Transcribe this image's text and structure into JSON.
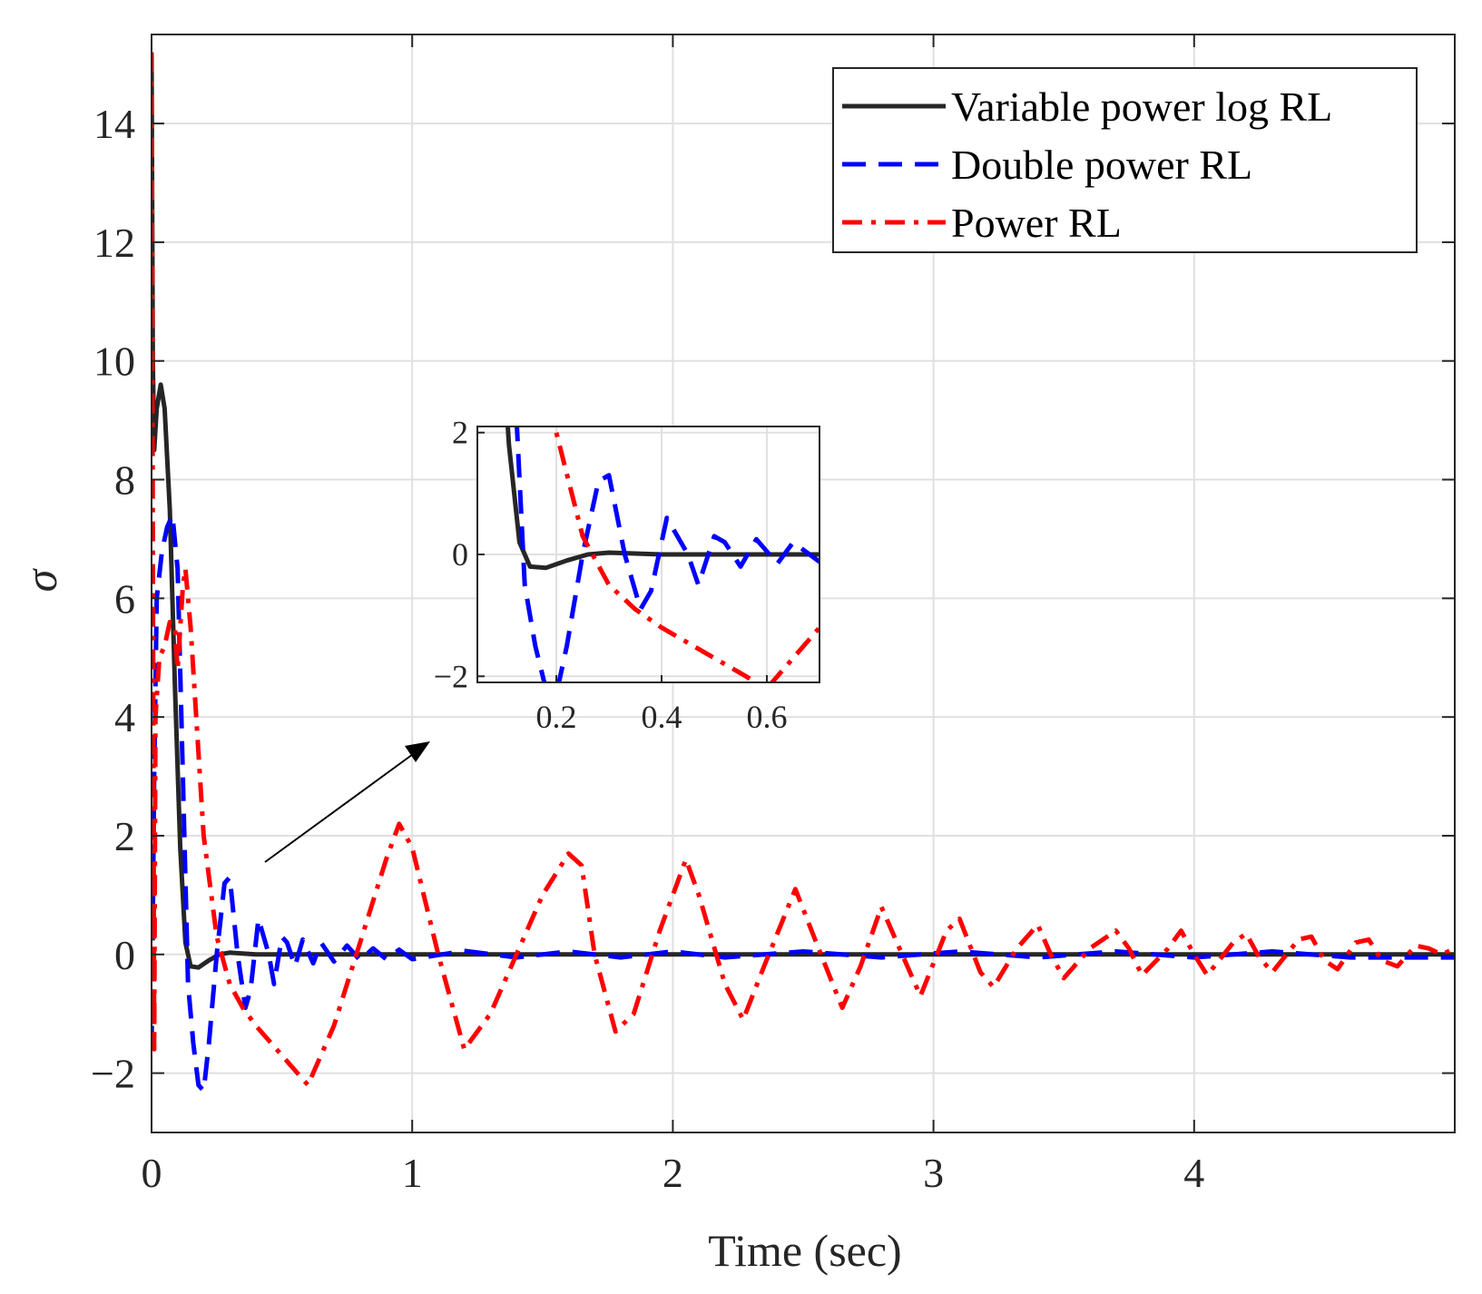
{
  "chart_data": {
    "type": "line",
    "xlabel": "Time (sec)",
    "ylabel": "σ",
    "xlim": [
      0,
      5
    ],
    "ylim": [
      -3,
      15.5
    ],
    "xticks": [
      0,
      1,
      2,
      3,
      4
    ],
    "yticks": [
      -2,
      0,
      2,
      4,
      6,
      8,
      10,
      12,
      14
    ],
    "xtick_labels": [
      "0",
      "1",
      "2",
      "3",
      "4"
    ],
    "ytick_labels": [
      "−2",
      "0",
      "2",
      "4",
      "6",
      "8",
      "10",
      "12",
      "14"
    ],
    "grid": true,
    "legend_position": "top-right",
    "series": [
      {
        "name": "Variable power log RL",
        "color": "#262626",
        "style": "solid",
        "points": [
          [
            0,
            15.2
          ],
          [
            0.005,
            10
          ],
          [
            0.01,
            8.5
          ],
          [
            0.02,
            9.2
          ],
          [
            0.035,
            9.6
          ],
          [
            0.05,
            9.2
          ],
          [
            0.07,
            7.5
          ],
          [
            0.09,
            4.5
          ],
          [
            0.11,
            1.8
          ],
          [
            0.13,
            0.2
          ],
          [
            0.15,
            -0.2
          ],
          [
            0.18,
            -0.22
          ],
          [
            0.22,
            -0.1
          ],
          [
            0.26,
            0
          ],
          [
            0.3,
            0.03
          ],
          [
            0.4,
            0
          ],
          [
            5,
            0
          ]
        ]
      },
      {
        "name": "Double power RL",
        "color": "#0000ff",
        "style": "dashed",
        "points": [
          [
            0,
            -1.6
          ],
          [
            0.01,
            3
          ],
          [
            0.02,
            6
          ],
          [
            0.04,
            6.8
          ],
          [
            0.06,
            7.2
          ],
          [
            0.08,
            7.4
          ],
          [
            0.1,
            6.5
          ],
          [
            0.12,
            3
          ],
          [
            0.14,
            -0.5
          ],
          [
            0.16,
            -1.5
          ],
          [
            0.18,
            -2.2
          ],
          [
            0.2,
            -2.3
          ],
          [
            0.22,
            -1.5
          ],
          [
            0.25,
            0
          ],
          [
            0.28,
            1.2
          ],
          [
            0.3,
            1.3
          ],
          [
            0.33,
            0
          ],
          [
            0.36,
            -0.9
          ],
          [
            0.38,
            -0.6
          ],
          [
            0.41,
            0.6
          ],
          [
            0.45,
            0
          ],
          [
            0.47,
            -0.5
          ],
          [
            0.5,
            0.3
          ],
          [
            0.52,
            0.2
          ],
          [
            0.55,
            -0.2
          ],
          [
            0.58,
            0.25
          ],
          [
            0.62,
            -0.15
          ],
          [
            0.65,
            0.2
          ],
          [
            0.7,
            -0.12
          ],
          [
            0.75,
            0.15
          ],
          [
            0.8,
            -0.1
          ],
          [
            0.85,
            0.1
          ],
          [
            0.9,
            -0.08
          ],
          [
            0.95,
            0.08
          ],
          [
            1.0,
            -0.08
          ],
          [
            1.2,
            0.06
          ],
          [
            1.4,
            -0.05
          ],
          [
            1.6,
            0.05
          ],
          [
            1.8,
            -0.05
          ],
          [
            2.0,
            0.05
          ],
          [
            2.2,
            -0.05
          ],
          [
            2.5,
            0.05
          ],
          [
            2.8,
            -0.05
          ],
          [
            3.1,
            0.05
          ],
          [
            3.4,
            -0.05
          ],
          [
            3.7,
            0.05
          ],
          [
            4.0,
            -0.05
          ],
          [
            4.3,
            0.05
          ],
          [
            4.6,
            -0.05
          ],
          [
            5.0,
            -0.05
          ]
        ]
      },
      {
        "name": "Power RL",
        "color": "#ff0000",
        "style": "dashdot",
        "points": [
          [
            0,
            15.2
          ],
          [
            0.01,
            -1.6
          ],
          [
            0.015,
            4
          ],
          [
            0.03,
            5
          ],
          [
            0.05,
            5.2
          ],
          [
            0.07,
            5.6
          ],
          [
            0.09,
            5.5
          ],
          [
            0.1,
            4.8
          ],
          [
            0.12,
            6.2
          ],
          [
            0.13,
            6.5
          ],
          [
            0.15,
            5.5
          ],
          [
            0.2,
            2
          ],
          [
            0.25,
            0.3
          ],
          [
            0.3,
            -0.5
          ],
          [
            0.35,
            -0.9
          ],
          [
            0.4,
            -1.2
          ],
          [
            0.5,
            -1.7
          ],
          [
            0.6,
            -2.2
          ],
          [
            0.7,
            -1.2
          ],
          [
            0.8,
            0.2
          ],
          [
            0.9,
            1.6
          ],
          [
            0.95,
            2.2
          ],
          [
            1.0,
            1.8
          ],
          [
            1.1,
            0
          ],
          [
            1.2,
            -1.6
          ],
          [
            1.3,
            -1
          ],
          [
            1.4,
            0
          ],
          [
            1.5,
            1
          ],
          [
            1.6,
            1.7
          ],
          [
            1.65,
            1.5
          ],
          [
            1.7,
            0
          ],
          [
            1.78,
            -1.3
          ],
          [
            1.85,
            -1
          ],
          [
            1.95,
            0.4
          ],
          [
            2.05,
            1.6
          ],
          [
            2.1,
            1
          ],
          [
            2.2,
            -0.5
          ],
          [
            2.27,
            -1.1
          ],
          [
            2.35,
            -0.2
          ],
          [
            2.47,
            1.1
          ],
          [
            2.55,
            0.2
          ],
          [
            2.65,
            -0.9
          ],
          [
            2.72,
            -0.2
          ],
          [
            2.8,
            0.8
          ],
          [
            2.88,
            0
          ],
          [
            2.95,
            -0.7
          ],
          [
            3.05,
            0.4
          ],
          [
            3.1,
            0.6
          ],
          [
            3.18,
            -0.3
          ],
          [
            3.23,
            -0.55
          ],
          [
            3.32,
            0.1
          ],
          [
            3.4,
            0.5
          ],
          [
            3.45,
            0
          ],
          [
            3.5,
            -0.4
          ],
          [
            3.6,
            0.1
          ],
          [
            3.7,
            0.4
          ],
          [
            3.75,
            0.1
          ],
          [
            3.8,
            -0.35
          ],
          [
            3.9,
            0.1
          ],
          [
            3.95,
            0.4
          ],
          [
            4.0,
            0
          ],
          [
            4.05,
            -0.35
          ],
          [
            4.15,
            0.2
          ],
          [
            4.2,
            0.35
          ],
          [
            4.25,
            -0.05
          ],
          [
            4.3,
            -0.3
          ],
          [
            4.4,
            0.25
          ],
          [
            4.45,
            0.3
          ],
          [
            4.5,
            -0.1
          ],
          [
            4.55,
            -0.25
          ],
          [
            4.62,
            0.2
          ],
          [
            4.67,
            0.25
          ],
          [
            4.72,
            -0.1
          ],
          [
            4.78,
            -0.2
          ],
          [
            4.85,
            0.15
          ],
          [
            4.9,
            0.1
          ],
          [
            4.95,
            0
          ],
          [
            5.0,
            0.1
          ]
        ]
      }
    ],
    "inset": {
      "xlim": [
        0.05,
        0.7
      ],
      "ylim": [
        -2.1,
        2.1
      ],
      "xticks": [
        0.2,
        0.4,
        0.6
      ],
      "yticks": [
        -2,
        0,
        2
      ],
      "xtick_labels": [
        "0.2",
        "0.4",
        "0.6"
      ],
      "ytick_labels": [
        "−2",
        "0",
        "2"
      ]
    },
    "annotation": "arrow pointing from main-plot oscillation region to the zoomed inset"
  }
}
